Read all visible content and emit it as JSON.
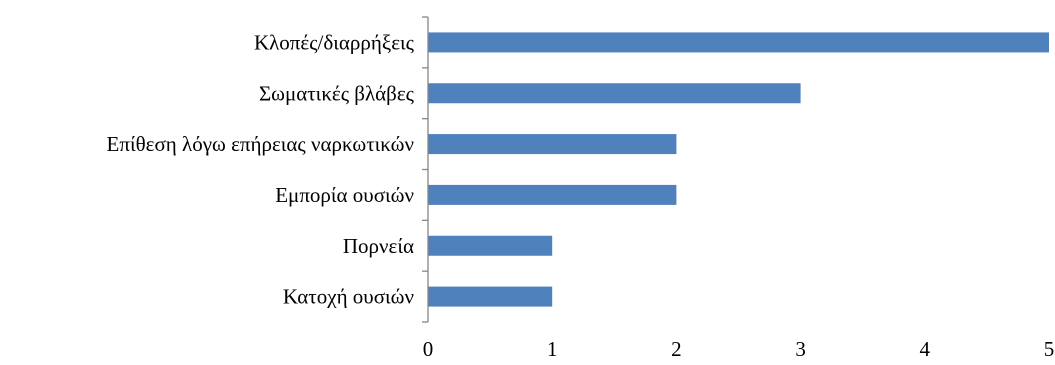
{
  "chart_data": {
    "type": "bar",
    "orientation": "horizontal",
    "categories": [
      "Κλοπές/διαρρήξεις",
      "Σωματικές βλάβες",
      "Επίθεση λόγω επήρειας ναρκωτικών",
      "Εμπορία ουσιών",
      "Πορνεία ",
      "Κατοχή ουσιών"
    ],
    "values": [
      5,
      3,
      2,
      2,
      1,
      1
    ],
    "xlim": [
      0,
      5
    ],
    "x_ticks": [
      "0",
      "1",
      "2",
      "3",
      "4",
      "5"
    ],
    "grid": false,
    "legend": "none",
    "title": "",
    "xlabel": "",
    "ylabel": "",
    "colors": {
      "bar": "#4f81bd"
    }
  }
}
